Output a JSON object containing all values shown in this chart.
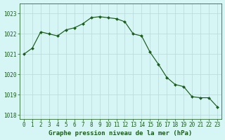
{
  "x": [
    0,
    1,
    2,
    3,
    4,
    5,
    6,
    7,
    8,
    9,
    10,
    11,
    12,
    13,
    14,
    15,
    16,
    17,
    18,
    19,
    20,
    21,
    22,
    23
  ],
  "y": [
    1021.0,
    1021.3,
    1022.1,
    1022.0,
    1021.9,
    1022.2,
    1022.3,
    1022.5,
    1022.8,
    1022.85,
    1022.8,
    1022.75,
    1022.6,
    1022.0,
    1021.9,
    1021.1,
    1020.5,
    1019.85,
    1019.5,
    1019.4,
    1018.9,
    1018.85,
    1018.85,
    1018.4
  ],
  "line_color": "#1a5c1a",
  "marker": "D",
  "marker_size": 2.0,
  "bg_color": "#d6f5f5",
  "grid_color": "#b8d8d8",
  "title": "Graphe pression niveau de la mer (hPa)",
  "ylabel_ticks": [
    1018,
    1019,
    1020,
    1021,
    1022,
    1023
  ],
  "xlim": [
    -0.5,
    23.5
  ],
  "ylim": [
    1017.8,
    1023.5
  ],
  "title_fontsize": 6.5,
  "tick_fontsize": 5.5,
  "title_color": "#1a5c1a",
  "tick_color": "#1a5c1a",
  "axis_color": "#2d6b2d"
}
